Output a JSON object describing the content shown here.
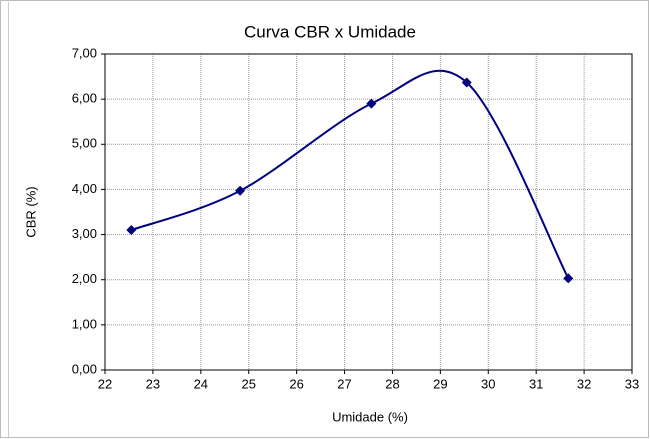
{
  "chart_data": {
    "type": "line",
    "title": "Curva CBR x Umidade",
    "x_label": "Umidade (%)",
    "y_label": "CBR (%)",
    "smooth": true,
    "grid": true,
    "marker": "diamond",
    "series": [
      {
        "color": "#000080",
        "x": [
          22.55,
          24.82,
          27.56,
          29.55,
          31.67
        ],
        "values": [
          3.1,
          3.97,
          5.9,
          6.37,
          2.03
        ]
      }
    ],
    "xlim": [
      22,
      33
    ],
    "xticks": [
      22,
      23,
      24,
      25,
      26,
      27,
      28,
      29,
      30,
      31,
      32,
      33
    ],
    "ylim": [
      0,
      7
    ],
    "yticks": [
      {
        "value": 0,
        "label": "0,00"
      },
      {
        "value": 1,
        "label": "1,00"
      },
      {
        "value": 2,
        "label": "2,00"
      },
      {
        "value": 3,
        "label": "3,00"
      },
      {
        "value": 4,
        "label": "4,00"
      },
      {
        "value": 5,
        "label": "5,00"
      },
      {
        "value": 6,
        "label": "6,00"
      },
      {
        "value": 7,
        "label": "7,00"
      }
    ]
  }
}
